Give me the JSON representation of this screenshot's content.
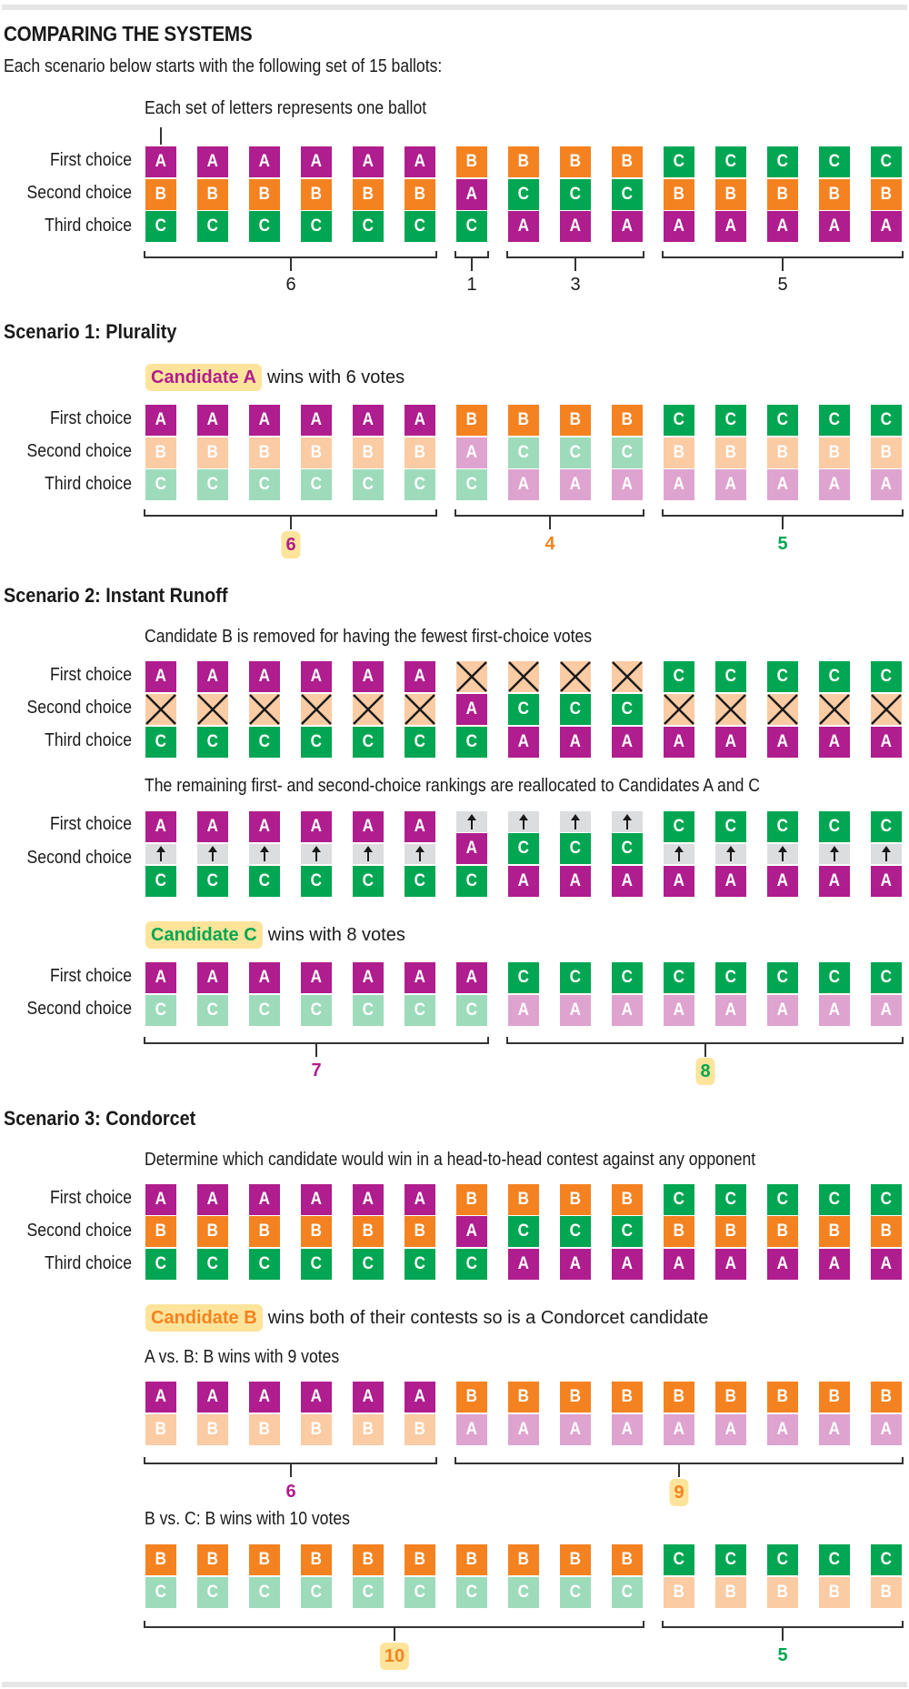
{
  "colors": {
    "A": "#b01d8e",
    "B": "#f58220",
    "C": "#00a651",
    "A_light": "#dfa3d0",
    "B_light": "#fbcba4",
    "C_light": "#9ddbbb",
    "highlight": "#fde49a",
    "arrow_cell": "#dcdddf"
  },
  "header": {
    "title": "COMPARING THE SYSTEMS",
    "subtitle": "Each scenario below starts with the following set of 15 ballots:",
    "pointer_note": "Each set of letters represents one ballot"
  },
  "row_labels": {
    "first": "First choice",
    "second": "Second choice",
    "third": "Third choice"
  },
  "initial": {
    "ballots": [
      "ABC",
      "ABC",
      "ABC",
      "ABC",
      "ABC",
      "ABC",
      "BAC",
      "BCA",
      "BCA",
      "BCA",
      "CBA",
      "CBA",
      "CBA",
      "CBA",
      "CBA"
    ],
    "groups": [
      {
        "from": 0,
        "to": 5,
        "label": "6"
      },
      {
        "from": 6,
        "to": 6,
        "label": "1"
      },
      {
        "from": 7,
        "to": 9,
        "label": "3"
      },
      {
        "from": 10,
        "to": 14,
        "label": "5"
      }
    ]
  },
  "scenario1": {
    "heading": "Scenario 1: Plurality",
    "winner_label": "Candidate A",
    "winner_rest": "wins with 6 votes",
    "groups": [
      {
        "from": 0,
        "to": 5,
        "label": "6",
        "candidate": "A",
        "highlight": true
      },
      {
        "from": 6,
        "to": 9,
        "label": "4",
        "candidate": "B",
        "highlight": false
      },
      {
        "from": 10,
        "to": 14,
        "label": "5",
        "candidate": "C",
        "highlight": false
      }
    ]
  },
  "scenario2": {
    "heading": "Scenario 2: Instant Runoff",
    "step1_caption": "Candidate B is removed for having the fewest first-choice votes",
    "step2_caption": "The remaining first- and second-choice rankings are reallocated to Candidates A and C",
    "winner_label": "Candidate C",
    "winner_rest": "wins with 8 votes",
    "final_ballots": [
      "AC",
      "AC",
      "AC",
      "AC",
      "AC",
      "AC",
      "AC",
      "CA",
      "CA",
      "CA",
      "CA",
      "CA",
      "CA",
      "CA",
      "CA"
    ],
    "groups": [
      {
        "from": 0,
        "to": 6,
        "label": "7",
        "candidate": "A",
        "highlight": false
      },
      {
        "from": 7,
        "to": 14,
        "label": "8",
        "candidate": "C",
        "highlight": true
      }
    ]
  },
  "scenario3": {
    "heading": "Scenario 3: Condorcet",
    "caption": "Determine which candidate would win in a head-to-head contest against any opponent",
    "winner_label": "Candidate B",
    "winner_rest": "wins both of their contests so is a Condorcet candidate",
    "contest1": {
      "caption": "A vs. B: B wins with 9 votes",
      "ballots": [
        "AB",
        "AB",
        "AB",
        "AB",
        "AB",
        "AB",
        "BA",
        "BA",
        "BA",
        "BA",
        "BA",
        "BA",
        "BA",
        "BA",
        "BA"
      ],
      "groups": [
        {
          "from": 0,
          "to": 5,
          "label": "6",
          "candidate": "A",
          "highlight": false
        },
        {
          "from": 6,
          "to": 14,
          "label": "9",
          "candidate": "B",
          "highlight": true
        }
      ]
    },
    "contest2": {
      "caption": "B vs. C: B wins with 10 votes",
      "ballots": [
        "BC",
        "BC",
        "BC",
        "BC",
        "BC",
        "BC",
        "BC",
        "BC",
        "BC",
        "BC",
        "CB",
        "CB",
        "CB",
        "CB",
        "CB"
      ],
      "groups": [
        {
          "from": 0,
          "to": 9,
          "label": "10",
          "candidate": "B",
          "highlight": true
        },
        {
          "from": 10,
          "to": 14,
          "label": "5",
          "candidate": "C",
          "highlight": false
        }
      ]
    }
  }
}
